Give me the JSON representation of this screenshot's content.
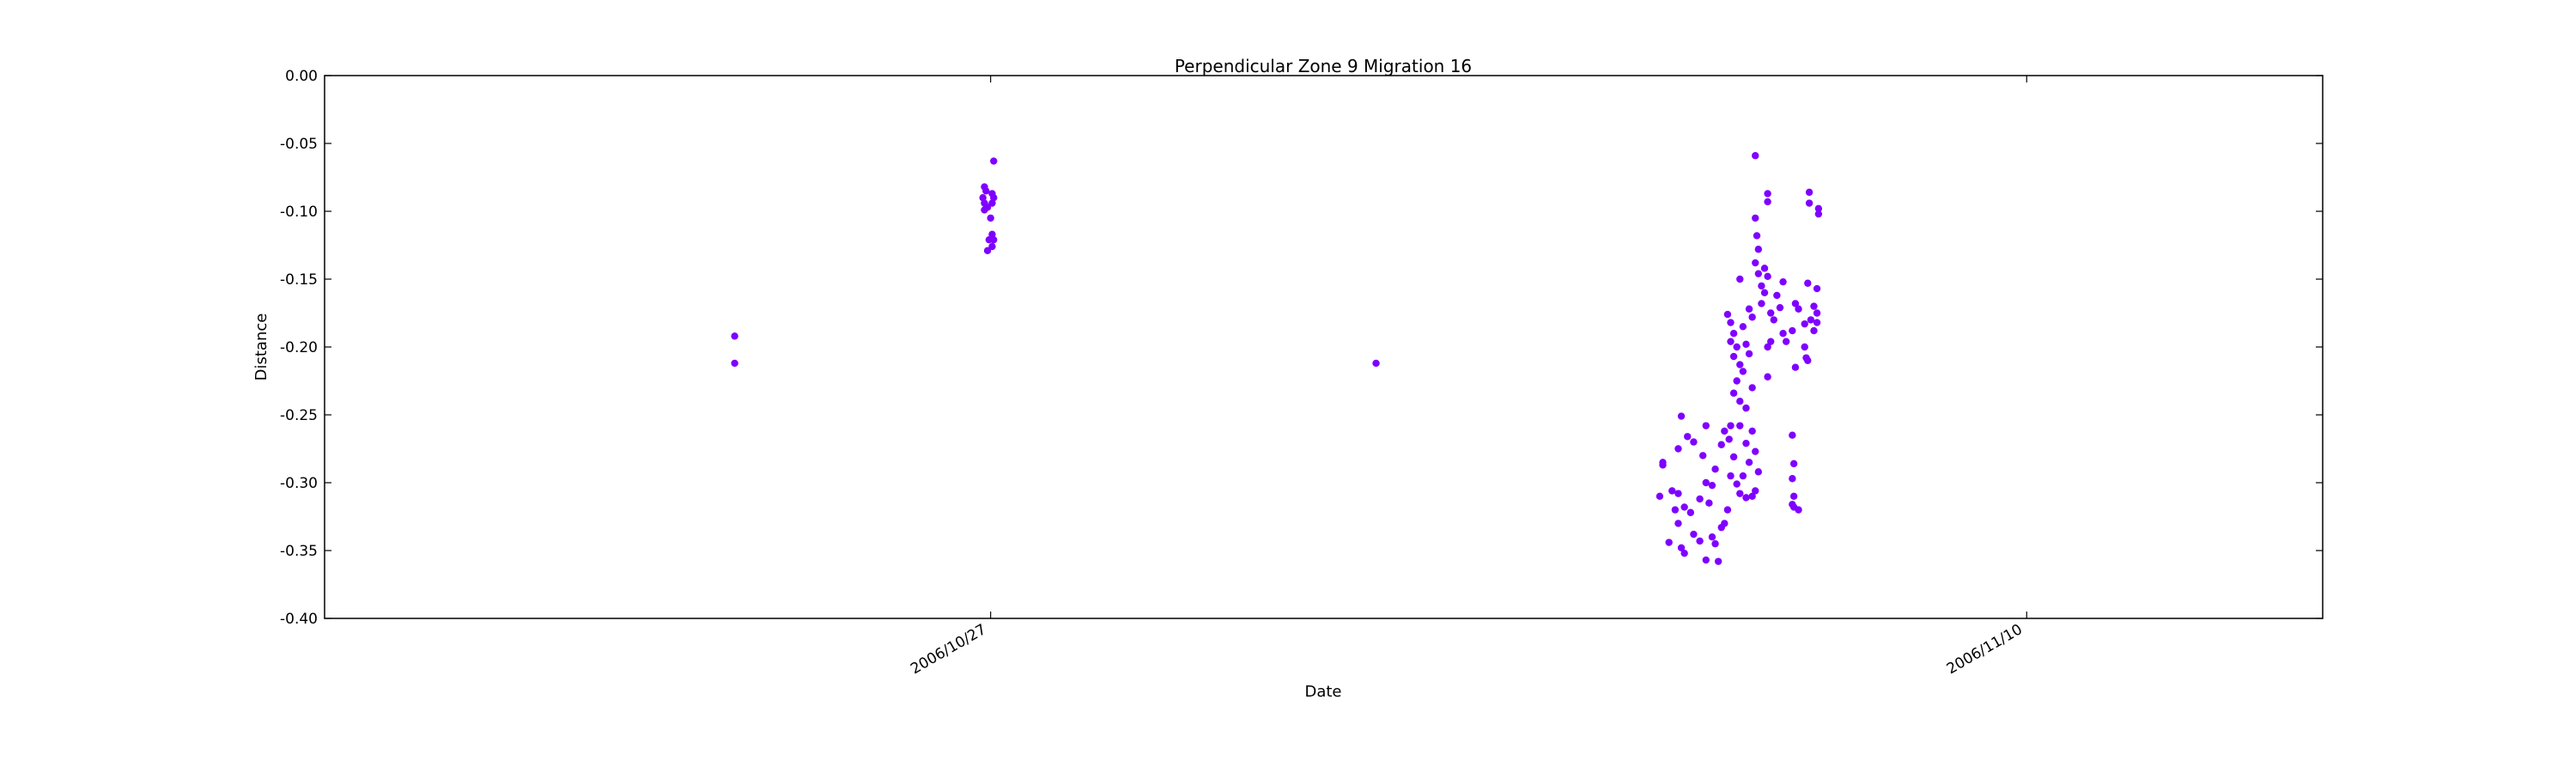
{
  "chart_data": {
    "type": "scatter",
    "title": "Perpendicular Zone 9 Migration 16",
    "xlabel": "Date",
    "ylabel": "Distance",
    "xlim": [
      "2006/10/18",
      "2006/11/14"
    ],
    "ylim": [
      -0.4,
      0.0
    ],
    "x_ticks": [
      "2006/10/27",
      "2006/11/10"
    ],
    "y_ticks": [
      "0.00",
      "-0.05",
      "-0.10",
      "-0.15",
      "-0.20",
      "-0.25",
      "-0.30",
      "-0.35",
      "-0.40"
    ],
    "grid": false,
    "marker_color": "#7f00ff",
    "series": [
      {
        "points": [
          [
            "2006/10/23 13:00",
            -0.192
          ],
          [
            "2006/10/23 13:00",
            -0.212
          ],
          [
            "2006/10/26 22:00",
            -0.082
          ],
          [
            "2006/10/26 22:30",
            -0.085
          ],
          [
            "2006/10/26 21:30",
            -0.09
          ],
          [
            "2006/10/26 22:00",
            -0.094
          ],
          [
            "2006/10/26 23:00",
            -0.097
          ],
          [
            "2006/10/26 22:00",
            -0.099
          ],
          [
            "2006/10/26 23:30",
            -0.121
          ],
          [
            "2006/10/26 23:00",
            -0.129
          ],
          [
            "2006/10/27 01:00",
            -0.063
          ],
          [
            "2006/10/27 00:30",
            -0.087
          ],
          [
            "2006/10/27 01:00",
            -0.09
          ],
          [
            "2006/10/27 00:30",
            -0.094
          ],
          [
            "2006/10/27 00:00",
            -0.105
          ],
          [
            "2006/10/27 00:30",
            -0.117
          ],
          [
            "2006/10/27 01:00",
            -0.121
          ],
          [
            "2006/10/27 00:30",
            -0.126
          ],
          [
            "2006/11/01 05:00",
            -0.212
          ],
          [
            "2006/11/05 02:00",
            -0.285
          ],
          [
            "2006/11/05 02:00",
            -0.287
          ],
          [
            "2006/11/05 01:00",
            -0.31
          ],
          [
            "2006/11/05 08:00",
            -0.251
          ],
          [
            "2006/11/05 10:00",
            -0.266
          ],
          [
            "2006/11/05 07:00",
            -0.275
          ],
          [
            "2006/11/05 12:00",
            -0.27
          ],
          [
            "2006/11/05 16:00",
            -0.258
          ],
          [
            "2006/11/05 15:00",
            -0.28
          ],
          [
            "2006/11/05 05:00",
            -0.306
          ],
          [
            "2006/11/05 07:00",
            -0.308
          ],
          [
            "2006/11/05 09:00",
            -0.318
          ],
          [
            "2006/11/05 06:00",
            -0.32
          ],
          [
            "2006/11/05 11:00",
            -0.322
          ],
          [
            "2006/11/05 14:00",
            -0.312
          ],
          [
            "2006/11/05 16:00",
            -0.3
          ],
          [
            "2006/11/05 17:00",
            -0.315
          ],
          [
            "2006/11/05 07:00",
            -0.33
          ],
          [
            "2006/11/05 04:00",
            -0.344
          ],
          [
            "2006/11/05 08:00",
            -0.348
          ],
          [
            "2006/11/05 09:00",
            -0.352
          ],
          [
            "2006/11/05 12:00",
            -0.338
          ],
          [
            "2006/11/05 14:00",
            -0.343
          ],
          [
            "2006/11/05 16:00",
            -0.357
          ],
          [
            "2006/11/05 18:00",
            -0.34
          ],
          [
            "2006/11/05 19:00",
            -0.345
          ],
          [
            "2006/11/05 20:00",
            -0.358
          ],
          [
            "2006/11/05 21:00",
            -0.333
          ],
          [
            "2006/11/05 22:00",
            -0.33
          ],
          [
            "2006/11/05 23:00",
            -0.32
          ],
          [
            "2006/11/05 21:00",
            -0.272
          ],
          [
            "2006/11/05 22:00",
            -0.262
          ],
          [
            "2006/11/05 23:30",
            -0.268
          ],
          [
            "2006/11/05 19:00",
            -0.29
          ],
          [
            "2006/11/05 18:00",
            -0.302
          ],
          [
            "2006/11/06 01:00",
            -0.281
          ],
          [
            "2006/11/06 00:00",
            -0.258
          ],
          [
            "2006/11/06 00:00",
            -0.295
          ],
          [
            "2006/11/06 02:00",
            -0.301
          ],
          [
            "2006/11/06 03:00",
            -0.308
          ],
          [
            "2006/11/06 04:00",
            -0.295
          ],
          [
            "2006/11/06 05:00",
            -0.311
          ],
          [
            "2006/11/06 06:00",
            -0.285
          ],
          [
            "2006/11/06 05:00",
            -0.271
          ],
          [
            "2006/11/06 03:00",
            -0.258
          ],
          [
            "2006/11/06 07:00",
            -0.262
          ],
          [
            "2006/11/06 08:00",
            -0.277
          ],
          [
            "2006/11/06 09:00",
            -0.292
          ],
          [
            "2006/11/06 08:00",
            -0.306
          ],
          [
            "2006/11/06 07:00",
            -0.31
          ],
          [
            "2006/11/05 23:00",
            -0.176
          ],
          [
            "2006/11/06 00:00",
            -0.182
          ],
          [
            "2006/11/06 01:00",
            -0.19
          ],
          [
            "2006/11/06 02:00",
            -0.2
          ],
          [
            "2006/11/06 01:00",
            -0.207
          ],
          [
            "2006/11/06 03:00",
            -0.213
          ],
          [
            "2006/11/06 00:00",
            -0.196
          ],
          [
            "2006/11/06 02:00",
            -0.225
          ],
          [
            "2006/11/06 01:00",
            -0.234
          ],
          [
            "2006/11/06 03:00",
            -0.24
          ],
          [
            "2006/11/06 04:00",
            -0.218
          ],
          [
            "2006/11/06 05:00",
            -0.198
          ],
          [
            "2006/11/06 04:00",
            -0.185
          ],
          [
            "2006/11/06 06:00",
            -0.172
          ],
          [
            "2006/11/06 07:00",
            -0.178
          ],
          [
            "2006/11/06 06:00",
            -0.205
          ],
          [
            "2006/11/06 07:00",
            -0.23
          ],
          [
            "2006/11/06 05:00",
            -0.245
          ],
          [
            "2006/11/06 03:00",
            -0.15
          ],
          [
            "2006/11/06 08:00",
            -0.105
          ],
          [
            "2006/11/06 08:30",
            -0.118
          ],
          [
            "2006/11/06 09:00",
            -0.128
          ],
          [
            "2006/11/06 08:00",
            -0.138
          ],
          [
            "2006/11/06 09:00",
            -0.146
          ],
          [
            "2006/11/06 10:00",
            -0.155
          ],
          [
            "2006/11/06 11:00",
            -0.16
          ],
          [
            "2006/11/06 10:00",
            -0.168
          ],
          [
            "2006/11/06 08:00",
            -0.059
          ],
          [
            "2006/11/06 12:00",
            -0.087
          ],
          [
            "2006/11/06 12:00",
            -0.093
          ],
          [
            "2006/11/06 11:00",
            -0.142
          ],
          [
            "2006/11/06 12:00",
            -0.148
          ],
          [
            "2006/11/06 13:00",
            -0.175
          ],
          [
            "2006/11/06 14:00",
            -0.18
          ],
          [
            "2006/11/06 12:00",
            -0.2
          ],
          [
            "2006/11/06 13:00",
            -0.196
          ],
          [
            "2006/11/06 12:00",
            -0.222
          ],
          [
            "2006/11/06 15:00",
            -0.162
          ],
          [
            "2006/11/06 16:00",
            -0.171
          ],
          [
            "2006/11/06 17:00",
            -0.152
          ],
          [
            "2006/11/06 17:00",
            -0.19
          ],
          [
            "2006/11/06 18:00",
            -0.196
          ],
          [
            "2006/11/06 20:00",
            -0.188
          ],
          [
            "2006/11/06 21:00",
            -0.168
          ],
          [
            "2006/11/06 21:00",
            -0.215
          ],
          [
            "2006/11/06 22:00",
            -0.172
          ],
          [
            "2006/11/07 00:00",
            -0.183
          ],
          [
            "2006/11/07 00:00",
            -0.2
          ],
          [
            "2006/11/07 00:30",
            -0.208
          ],
          [
            "2006/11/07 01:00",
            -0.21
          ],
          [
            "2006/11/07 01:00",
            -0.153
          ],
          [
            "2006/11/07 01:30",
            -0.086
          ],
          [
            "2006/11/07 01:30",
            -0.094
          ],
          [
            "2006/11/07 03:00",
            -0.17
          ],
          [
            "2006/11/07 02:00",
            -0.18
          ],
          [
            "2006/11/07 03:00",
            -0.188
          ],
          [
            "2006/11/07 04:00",
            -0.157
          ],
          [
            "2006/11/07 04:00",
            -0.182
          ],
          [
            "2006/11/07 04:00",
            -0.175
          ],
          [
            "2006/11/07 04:30",
            -0.098
          ],
          [
            "2006/11/07 04:30",
            -0.102
          ],
          [
            "2006/11/06 20:00",
            -0.265
          ],
          [
            "2006/11/06 20:30",
            -0.286
          ],
          [
            "2006/11/06 20:00",
            -0.297
          ],
          [
            "2006/11/06 20:30",
            -0.31
          ],
          [
            "2006/11/06 20:00",
            -0.316
          ],
          [
            "2006/11/06 20:30",
            -0.318
          ],
          [
            "2006/11/06 22:00",
            -0.32
          ]
        ]
      }
    ]
  }
}
